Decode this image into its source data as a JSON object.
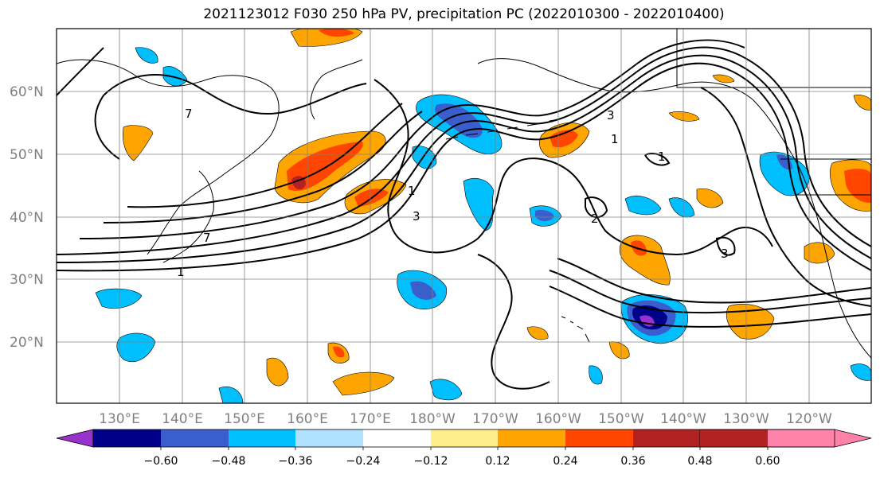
{
  "title": "2021123012 F030 250 hPa PV, precipitation PC (2022010300 - 2022010400)",
  "lat_labels": [
    "60°N",
    "50°N",
    "40°N",
    "30°N",
    "20°N"
  ],
  "lon_labels": [
    "130°E",
    "140°E",
    "150°E",
    "160°E",
    "170°E",
    "180°W",
    "170°W",
    "160°W",
    "150°W",
    "140°W",
    "130°W",
    "120°W"
  ],
  "colorbar": {
    "tick_labels": [
      "−0.60",
      "−0.48",
      "−0.36",
      "−0.24",
      "−0.12",
      "0.12",
      "0.24",
      "0.36",
      "0.48",
      "0.60"
    ],
    "colors": [
      "#9932CC",
      "#00008B",
      "#3A5FCD",
      "#00BFFF",
      "#B0E2FF",
      "#FFFFFF",
      "#FFEC8B",
      "#FFA500",
      "#FF4500",
      "#B22222",
      "#FF82AB"
    ]
  },
  "contour_labels": [
    "7",
    "1",
    "7",
    "3",
    "1",
    "3",
    "2",
    "1",
    "1",
    "3"
  ]
}
